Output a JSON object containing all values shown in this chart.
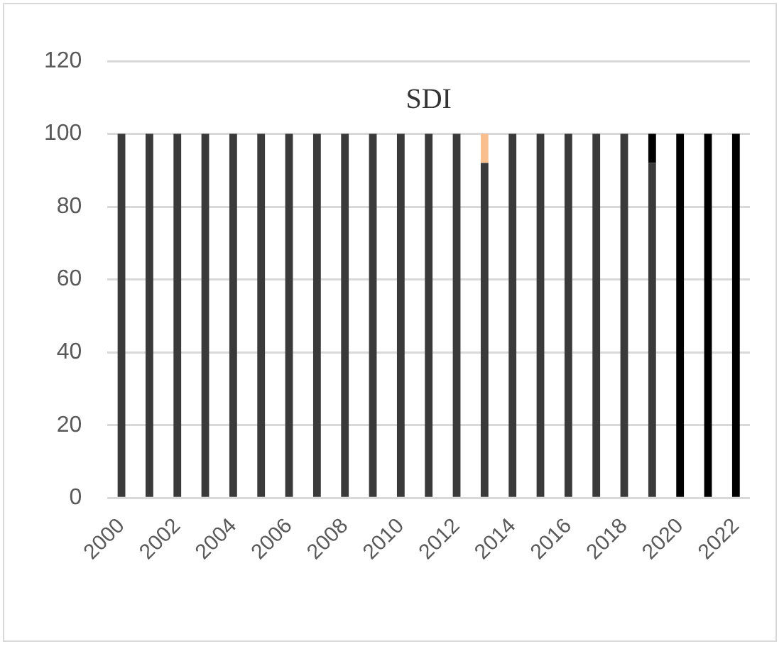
{
  "chart_data": {
    "type": "bar",
    "title": "SDI",
    "stacked": true,
    "categories": [
      "2000",
      null,
      "2002",
      null,
      "2004",
      null,
      "2006",
      null,
      "2008",
      null,
      "2010",
      null,
      "2012",
      null,
      "2014",
      null,
      "2016",
      null,
      "2018",
      null,
      "2020",
      null,
      "2022"
    ],
    "series": [
      {
        "color": "#3a3a3a",
        "values": [
          100,
          100,
          100,
          100,
          100,
          100,
          100,
          100,
          100,
          100,
          100,
          100,
          100,
          92,
          100,
          100,
          100,
          100,
          100,
          92,
          0,
          0,
          0
        ]
      },
      {
        "color": "#f8c08e",
        "values": [
          0,
          0,
          0,
          0,
          0,
          0,
          0,
          0,
          0,
          0,
          0,
          0,
          0,
          8,
          0,
          0,
          0,
          0,
          0,
          0,
          0,
          0,
          0
        ]
      },
      {
        "color": "#000000",
        "values": [
          0,
          0,
          0,
          0,
          0,
          0,
          0,
          0,
          0,
          0,
          0,
          0,
          0,
          0,
          0,
          0,
          0,
          0,
          0,
          8,
          100,
          100,
          100
        ]
      }
    ],
    "ylim": [
      0,
      120
    ],
    "yticks": [
      0,
      20,
      40,
      60,
      80,
      100,
      120
    ],
    "grid": "y",
    "legend": false
  }
}
